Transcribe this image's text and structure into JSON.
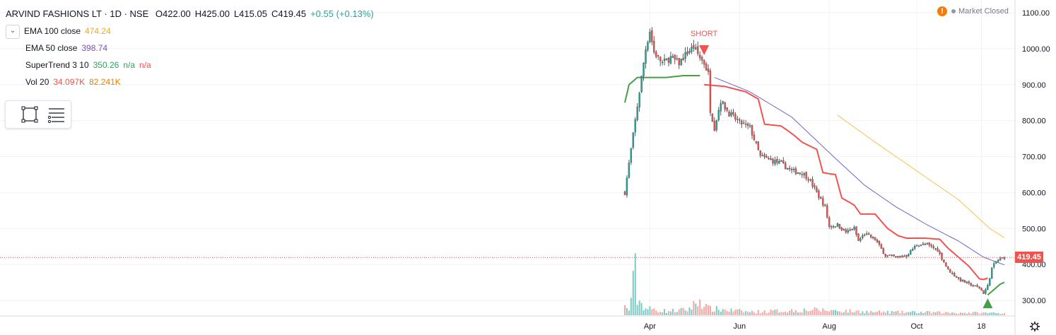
{
  "header": {
    "symbol": "ARVIND FASHIONS LT · 1D · NSE",
    "open": "O422.00",
    "high": "H425.00",
    "low": "L415.05",
    "close": "C419.45",
    "change": "+0.55 (+0.13%)"
  },
  "indicators": [
    {
      "label": "EMA 100 close",
      "values": [
        "474.24"
      ],
      "colors": [
        "#f5a623"
      ]
    },
    {
      "label": "EMA 50 close",
      "values": [
        "398.74"
      ],
      "colors": [
        "#7b4fb7"
      ]
    },
    {
      "label": "SuperTrend 3 10",
      "values": [
        "350.26",
        "n/a",
        "n/a"
      ],
      "colors": [
        "#26a65b",
        "#26a65b",
        "#ef5350"
      ]
    },
    {
      "label": "Vol 20",
      "values": [
        "34.097K",
        "82.241K"
      ],
      "colors": [
        "#ef5350",
        "#f57c00"
      ]
    }
  ],
  "market_status": "Market Closed",
  "market_status_icon": "warning-icon",
  "last_price_label": "419.45",
  "annotations": {
    "short_label": "SHORT"
  },
  "toolbox": {
    "icons": [
      "rectangle-select-icon",
      "object-tree-icon"
    ]
  },
  "colors": {
    "up": "#26a69a",
    "down": "#ef5350",
    "ema100": "#f5c14e",
    "ema50": "#7b5fc7",
    "supertrend_up": "#43a047",
    "supertrend_down": "#ef5350",
    "vol_up": "#80cbc4",
    "vol_down": "#f8a8a3"
  },
  "chart_data": {
    "type": "candlestick",
    "title": "ARVIND FASHIONS LT · 1D · NSE",
    "x_tick_labels": [
      "Apr",
      "Jun",
      "Aug",
      "Oct",
      "18"
    ],
    "y_tick_labels": [
      "300.00",
      "400.00",
      "500.00",
      "600.00",
      "700.00",
      "800.00",
      "900.00",
      "1000.00",
      "1100.00"
    ],
    "ylim": [
      270,
      1115
    ],
    "grid": true,
    "close_series_anchors": [
      [
        0,
        600
      ],
      [
        1,
        640
      ],
      [
        2,
        680
      ],
      [
        3,
        720
      ],
      [
        4,
        760
      ],
      [
        5,
        800
      ],
      [
        6,
        840
      ],
      [
        7,
        880
      ],
      [
        8,
        920
      ],
      [
        9,
        960
      ],
      [
        10,
        1000
      ],
      [
        12,
        1050
      ],
      [
        14,
        990
      ],
      [
        18,
        960
      ],
      [
        22,
        975
      ],
      [
        26,
        960
      ],
      [
        30,
        990
      ],
      [
        33,
        1005
      ],
      [
        36,
        975
      ],
      [
        38,
        960
      ],
      [
        40,
        930
      ],
      [
        41,
        830
      ],
      [
        43,
        780
      ],
      [
        46,
        855
      ],
      [
        50,
        820
      ],
      [
        55,
        795
      ],
      [
        60,
        780
      ],
      [
        65,
        700
      ],
      [
        70,
        690
      ],
      [
        75,
        680
      ],
      [
        80,
        660
      ],
      [
        85,
        655
      ],
      [
        88,
        640
      ],
      [
        92,
        600
      ],
      [
        96,
        560
      ],
      [
        98,
        505
      ],
      [
        102,
        510
      ],
      [
        106,
        490
      ],
      [
        110,
        500
      ],
      [
        112,
        465
      ],
      [
        115,
        485
      ],
      [
        120,
        470
      ],
      [
        125,
        425
      ],
      [
        130,
        420
      ],
      [
        135,
        425
      ],
      [
        140,
        455
      ],
      [
        145,
        455
      ],
      [
        150,
        440
      ],
      [
        155,
        385
      ],
      [
        160,
        360
      ],
      [
        165,
        345
      ],
      [
        170,
        335
      ],
      [
        172,
        320
      ],
      [
        174,
        340
      ],
      [
        176,
        390
      ],
      [
        178,
        408
      ],
      [
        180,
        415
      ],
      [
        182,
        419.45
      ]
    ],
    "ema100_anchors": [
      [
        102,
        815
      ],
      [
        120,
        740
      ],
      [
        140,
        660
      ],
      [
        160,
        580
      ],
      [
        175,
        500
      ],
      [
        182,
        474.24
      ]
    ],
    "ema50_anchors": [
      [
        43,
        920
      ],
      [
        60,
        880
      ],
      [
        80,
        810
      ],
      [
        100,
        700
      ],
      [
        115,
        620
      ],
      [
        130,
        560
      ],
      [
        145,
        510
      ],
      [
        160,
        465
      ],
      [
        172,
        420
      ],
      [
        182,
        398.74
      ]
    ],
    "supertrend_up_anchors": [
      [
        0,
        850
      ],
      [
        2,
        900
      ],
      [
        6,
        920
      ],
      [
        12,
        920
      ],
      [
        20,
        920
      ],
      [
        28,
        925
      ],
      [
        36,
        925
      ]
    ],
    "supertrend_down_anchors": [
      [
        38,
        900
      ],
      [
        48,
        895
      ],
      [
        58,
        880
      ],
      [
        64,
        860
      ],
      [
        67,
        790
      ],
      [
        75,
        785
      ],
      [
        81,
        760
      ],
      [
        85,
        740
      ],
      [
        92,
        720
      ],
      [
        95,
        655
      ],
      [
        101,
        650
      ],
      [
        104,
        585
      ],
      [
        110,
        565
      ],
      [
        113,
        540
      ],
      [
        120,
        540
      ],
      [
        126,
        500
      ],
      [
        131,
        480
      ],
      [
        135,
        473
      ],
      [
        144,
        473
      ],
      [
        151,
        470
      ],
      [
        155,
        445
      ],
      [
        160,
        420
      ],
      [
        165,
        395
      ],
      [
        170,
        360
      ],
      [
        172,
        358
      ],
      [
        174,
        362
      ]
    ],
    "supertrend_recovery_anchors": [
      [
        174,
        315
      ],
      [
        176,
        325
      ],
      [
        180,
        345
      ],
      [
        182,
        350.26
      ]
    ],
    "volume_anchors": [
      [
        0,
        30
      ],
      [
        2,
        20
      ],
      [
        5,
        160
      ],
      [
        6,
        60
      ],
      [
        10,
        25
      ],
      [
        20,
        15
      ],
      [
        30,
        20
      ],
      [
        36,
        55
      ],
      [
        40,
        25
      ],
      [
        60,
        12
      ],
      [
        90,
        20
      ],
      [
        120,
        12
      ],
      [
        150,
        10
      ],
      [
        182,
        8
      ]
    ],
    "short_signal_index": 38,
    "long_signal_index": 174,
    "last_price": 419.45,
    "candle_count": 183
  }
}
